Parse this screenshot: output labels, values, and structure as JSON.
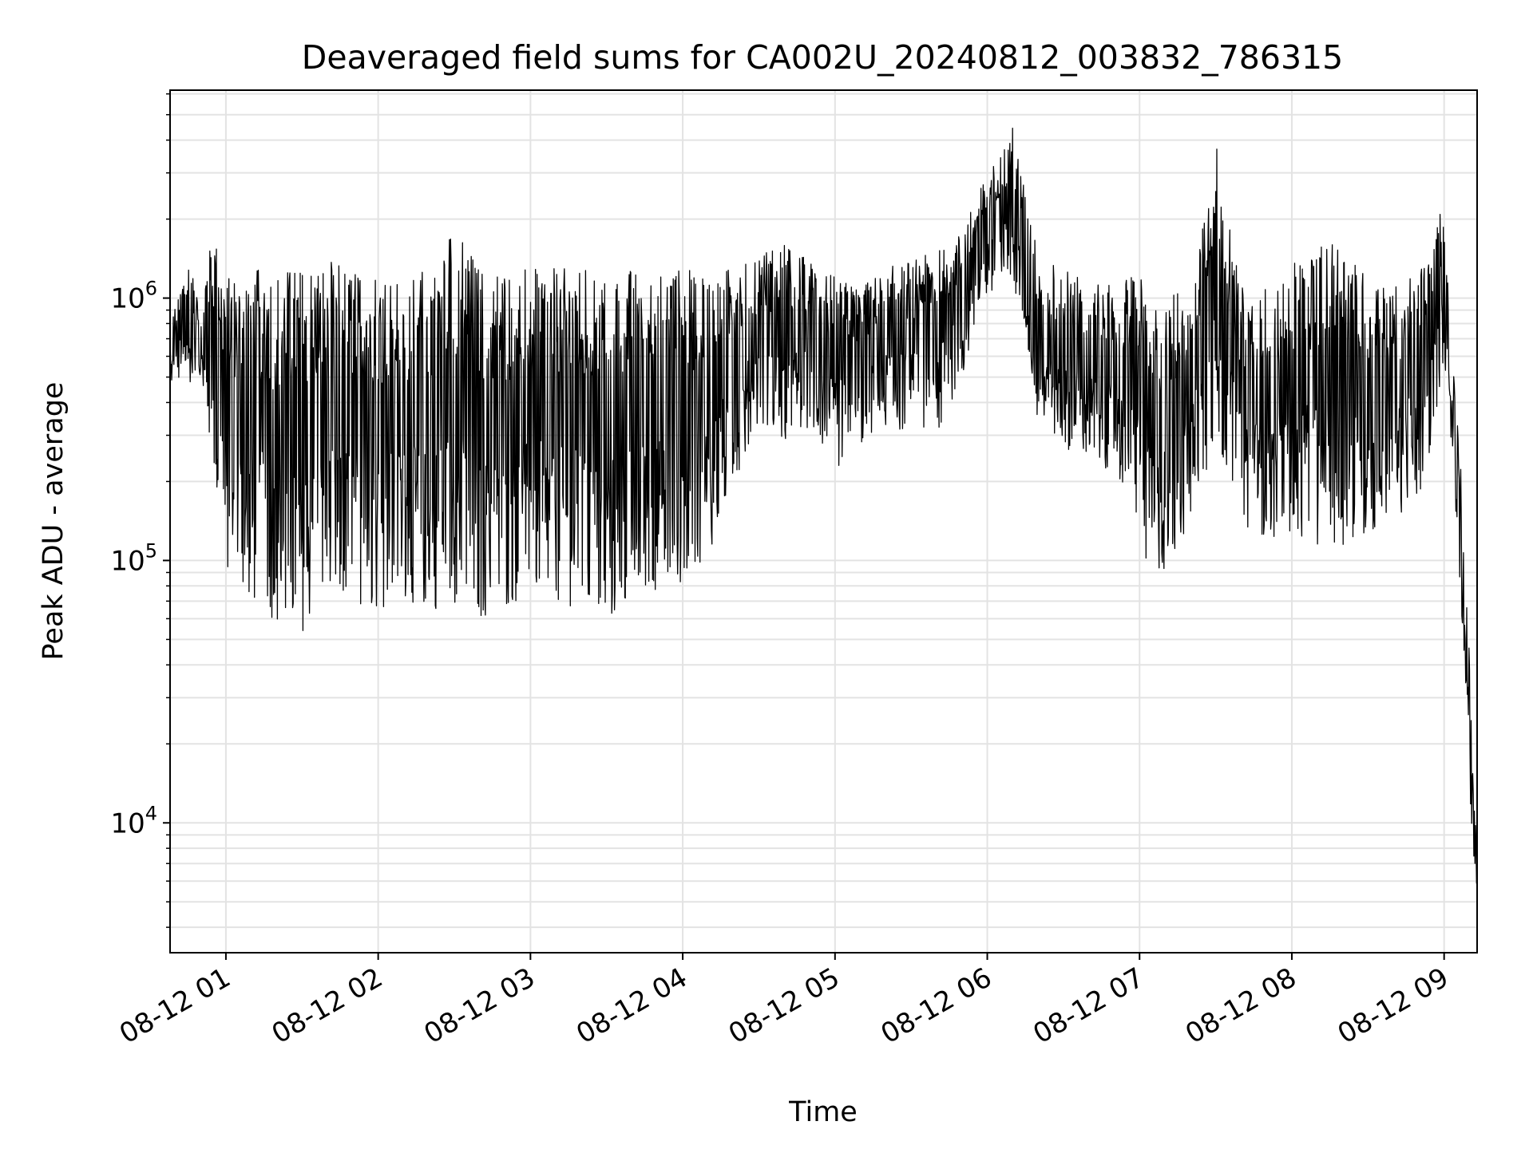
{
  "chart_data": {
    "type": "line",
    "title": "Deaveraged field sums for CA002U_20240812_003832_786315",
    "xlabel": "Time",
    "ylabel": "Peak ADU - average",
    "y_scale": "log",
    "ylim": [
      3200,
      6200000
    ],
    "xlim": [
      "08-12 00:38",
      "08-12 09:13"
    ],
    "grid": true,
    "line_color": "#000000",
    "x_ticks": [
      "08-12 01",
      "08-12 02",
      "08-12 03",
      "08-12 04",
      "08-12 05",
      "08-12 06",
      "08-12 07",
      "08-12 08",
      "08-12 09"
    ],
    "y_ticks": [
      {
        "base": "10",
        "exp": "4",
        "value": 10000
      },
      {
        "base": "10",
        "exp": "5",
        "value": 100000
      },
      {
        "base": "10",
        "exp": "6",
        "value": 1000000
      }
    ],
    "series": [
      {
        "note_band": "approximate envelope of a dense time series (upper / lower extents read from the plot)",
        "x": [
          "08-12 00:38",
          "08-12 00:45",
          "08-12 00:50",
          "08-12 00:55",
          "08-12 01:00",
          "08-12 01:10",
          "08-12 01:20",
          "08-12 01:30",
          "08-12 01:40",
          "08-12 01:50",
          "08-12 02:00",
          "08-12 02:10",
          "08-12 02:20",
          "08-12 02:30",
          "08-12 02:40",
          "08-12 02:50",
          "08-12 03:00",
          "08-12 03:10",
          "08-12 03:20",
          "08-12 03:30",
          "08-12 03:40",
          "08-12 03:50",
          "08-12 04:00",
          "08-12 04:10",
          "08-12 04:20",
          "08-12 04:30",
          "08-12 04:40",
          "08-12 04:50",
          "08-12 05:00",
          "08-12 05:10",
          "08-12 05:20",
          "08-12 05:30",
          "08-12 05:40",
          "08-12 05:50",
          "08-12 06:00",
          "08-12 06:05",
          "08-12 06:10",
          "08-12 06:15",
          "08-12 06:20",
          "08-12 06:30",
          "08-12 06:40",
          "08-12 06:50",
          "08-12 07:00",
          "08-12 07:05",
          "08-12 07:10",
          "08-12 07:20",
          "08-12 07:30",
          "08-12 07:40",
          "08-12 07:50",
          "08-12 08:00",
          "08-12 08:10",
          "08-12 08:20",
          "08-12 08:30",
          "08-12 08:40",
          "08-12 08:50",
          "08-12 08:55",
          "08-12 09:00",
          "08-12 09:03",
          "08-12 09:06",
          "08-12 09:09",
          "08-12 09:11",
          "08-12 09:13"
        ],
        "upper": [
          800000,
          1400000,
          1000000,
          1800000,
          1200000,
          1300000,
          1300000,
          1300000,
          1400000,
          1300000,
          1300000,
          1300000,
          1300000,
          2000000,
          1300000,
          1300000,
          1300000,
          1300000,
          1300000,
          1300000,
          1300000,
          1300000,
          1300000,
          1300000,
          1300000,
          1500000,
          1600000,
          1400000,
          1200000,
          1100000,
          1300000,
          1400000,
          1500000,
          1800000,
          3000000,
          3500000,
          4500000,
          2500000,
          1500000,
          1300000,
          1200000,
          1100000,
          1300000,
          1000000,
          1000000,
          1200000,
          4000000,
          1100000,
          1100000,
          1400000,
          1600000,
          1600000,
          1200000,
          1100000,
          1300000,
          1500000,
          2500000,
          800000,
          300000,
          80000,
          20000,
          7000
        ],
        "lower": [
          450000,
          450000,
          450000,
          200000,
          80000,
          60000,
          45000,
          45000,
          55000,
          60000,
          55000,
          60000,
          55000,
          55000,
          50000,
          55000,
          65000,
          60000,
          55000,
          45000,
          65000,
          65000,
          70000,
          90000,
          180000,
          300000,
          250000,
          300000,
          200000,
          250000,
          300000,
          280000,
          280000,
          450000,
          900000,
          1200000,
          1000000,
          700000,
          300000,
          250000,
          220000,
          200000,
          120000,
          55000,
          80000,
          120000,
          250000,
          120000,
          110000,
          100000,
          100000,
          100000,
          110000,
          130000,
          150000,
          250000,
          550000,
          250000,
          80000,
          25000,
          8000,
          5000
        ]
      }
    ]
  }
}
